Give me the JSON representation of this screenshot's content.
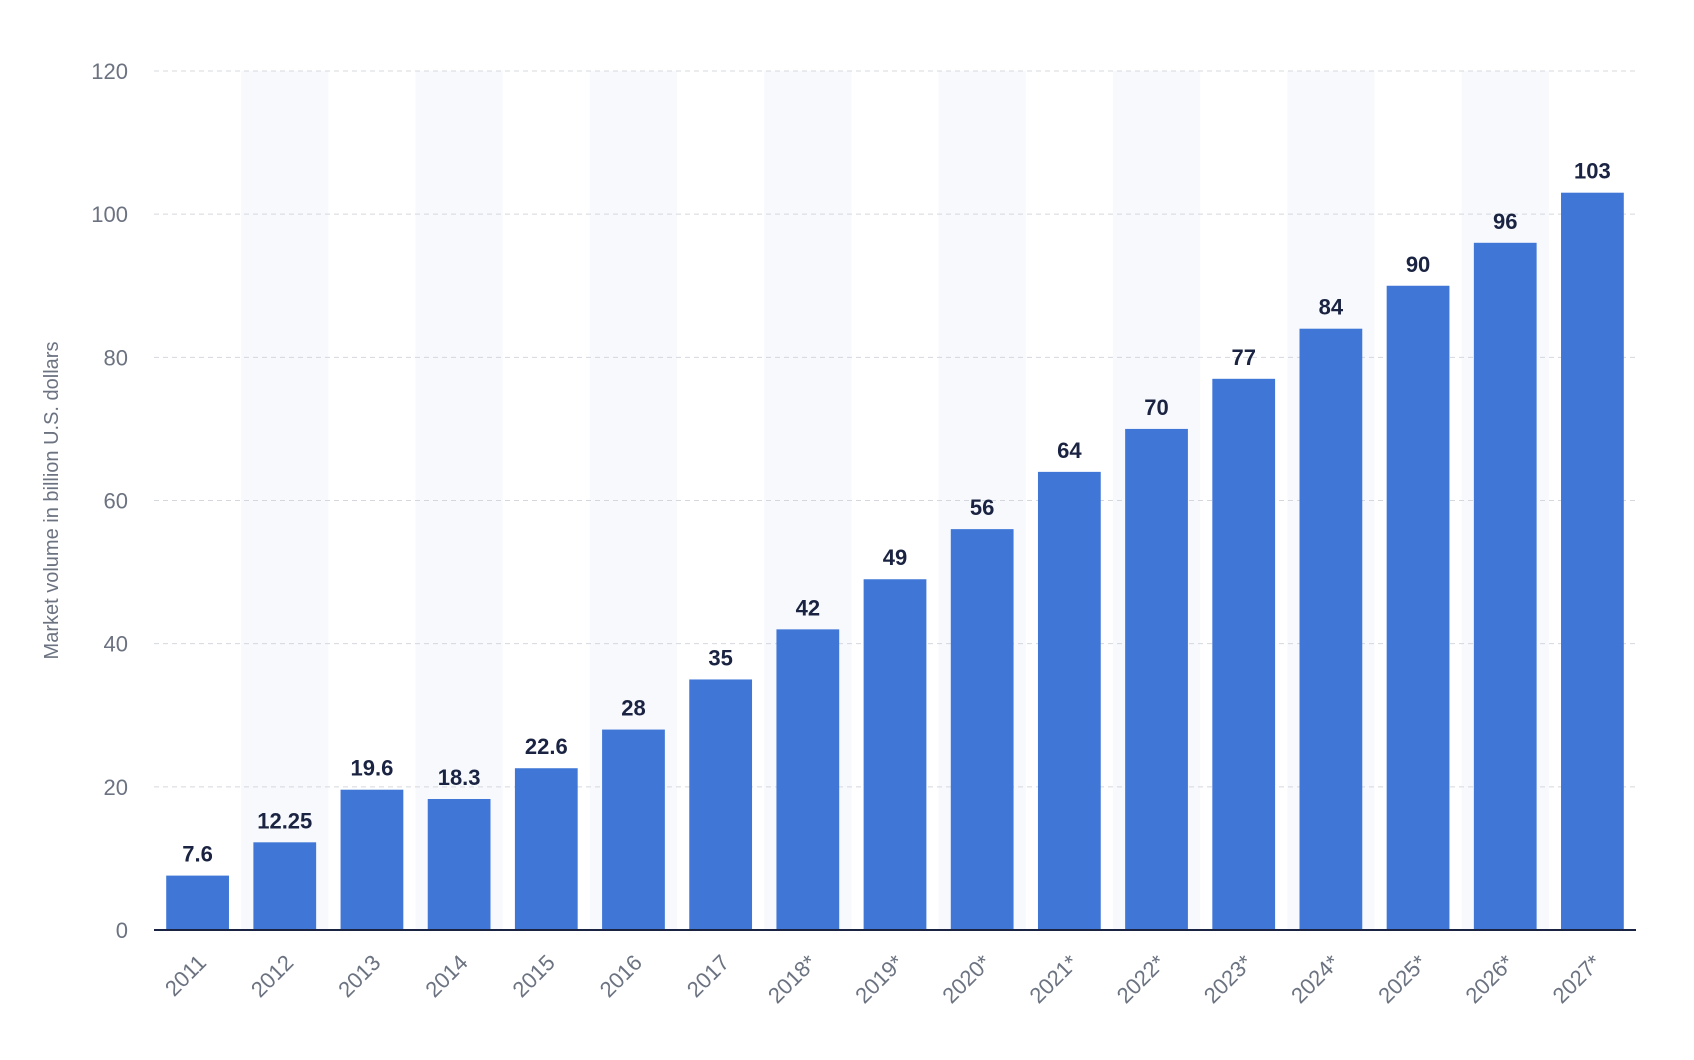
{
  "colors": {
    "bar": "#4077d6",
    "band": "#f7f9fd",
    "grid": "#d4d8de",
    "axis": "#1a2341",
    "tick_text": "#6b7280",
    "label_text": "#1a2341"
  },
  "chart_data": {
    "type": "bar",
    "title": "",
    "xlabel": "",
    "ylabel": "Market volume in billion U.S. dollars",
    "ylim": [
      0,
      120
    ],
    "yticks": [
      0,
      20,
      40,
      60,
      80,
      100,
      120
    ],
    "grid": true,
    "legend": "none",
    "categories": [
      "2011",
      "2012",
      "2013",
      "2014",
      "2015",
      "2016",
      "2017",
      "2018*",
      "2019*",
      "2020*",
      "2021*",
      "2022*",
      "2023*",
      "2024*",
      "2025*",
      "2026*",
      "2027*"
    ],
    "values": [
      7.6,
      12.25,
      19.6,
      18.3,
      22.6,
      28,
      35,
      42,
      49,
      56,
      64,
      70,
      77,
      84,
      90,
      96,
      103
    ],
    "value_labels": [
      "7.6",
      "12.25",
      "19.6",
      "18.3",
      "22.6",
      "28",
      "35",
      "42",
      "49",
      "56",
      "64",
      "70",
      "77",
      "84",
      "90",
      "96",
      "103"
    ]
  }
}
